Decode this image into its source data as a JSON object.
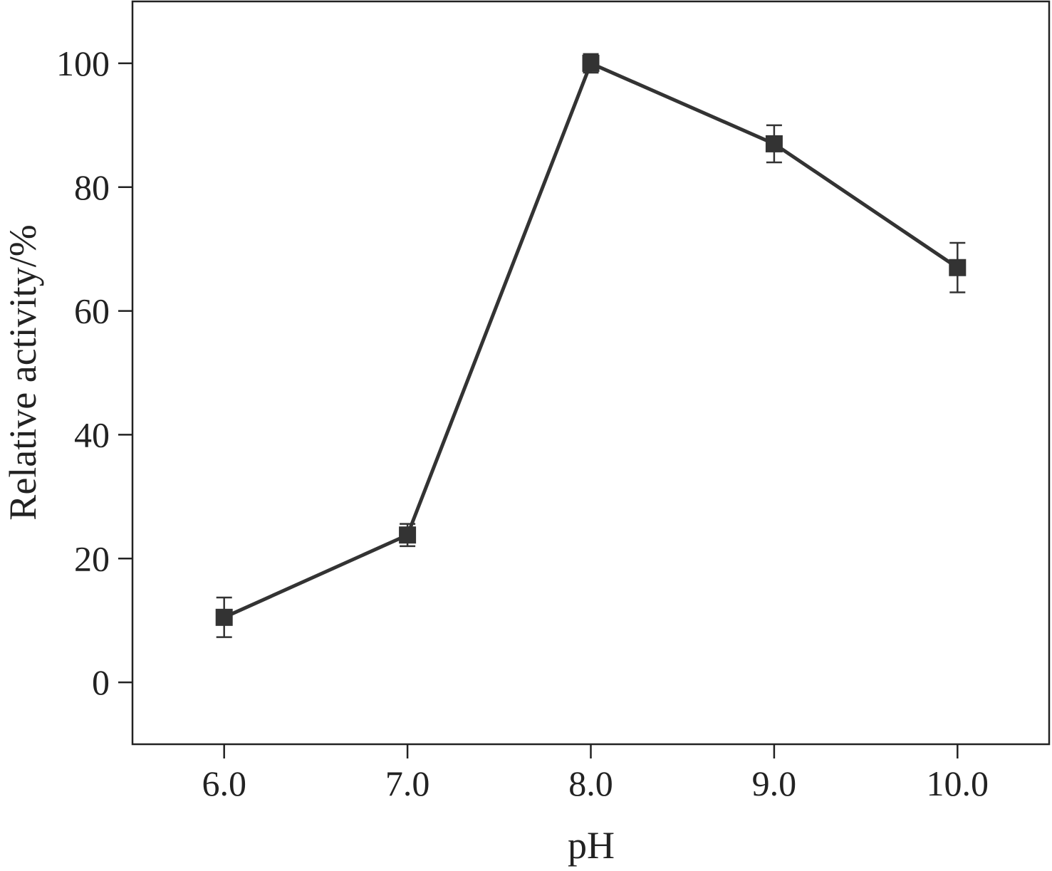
{
  "chart_data": {
    "type": "line",
    "xlabel": "pH",
    "ylabel": "Relative activity/%",
    "x_tick_labels": [
      "6.0",
      "7.0",
      "8.0",
      "9.0",
      "10.0"
    ],
    "y_ticks": [
      0,
      20,
      40,
      60,
      80,
      100
    ],
    "xlim": [
      5.5,
      10.5
    ],
    "ylim": [
      -10,
      110
    ],
    "grid": false,
    "legend": "none",
    "series": [
      {
        "x": [
          6.0,
          7.0,
          8.0,
          9.0,
          10.0
        ],
        "y": [
          10.5,
          23.8,
          100,
          87,
          67
        ],
        "error": [
          3.2,
          1.8,
          1.5,
          3.0,
          4.0
        ],
        "color": "#333333",
        "marker": "square"
      }
    ]
  }
}
